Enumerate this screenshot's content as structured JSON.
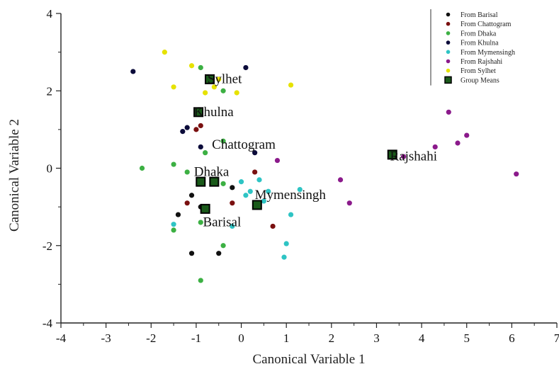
{
  "chart_data": {
    "type": "scatter",
    "xlabel": "Canonical Variable 1",
    "ylabel": "Canonical Variable 2",
    "xlim": [
      -4,
      7
    ],
    "ylim": [
      -4,
      4
    ],
    "xticks": [
      "-4",
      "-3",
      "-2",
      "-1",
      "0",
      "1",
      "2",
      "3",
      "4",
      "5",
      "6",
      "7"
    ],
    "yticks": [
      "4",
      "2",
      "0",
      "-2",
      "-4"
    ],
    "grid": false,
    "legend_position": "top-right",
    "series": [
      {
        "name": "From Barisal",
        "color": "#111111",
        "points": [
          [
            -1.1,
            -0.7
          ],
          [
            -1.4,
            -1.2
          ],
          [
            -0.9,
            -1.0
          ],
          [
            -0.5,
            -2.2
          ],
          [
            -1.1,
            -2.2
          ],
          [
            0.3,
            -0.9
          ],
          [
            -0.2,
            -0.5
          ]
        ]
      },
      {
        "name": "From Chattogram",
        "color": "#7a1010",
        "points": [
          [
            -1.0,
            1.0
          ],
          [
            -0.9,
            1.1
          ],
          [
            0.3,
            -0.1
          ],
          [
            0.7,
            -1.5
          ],
          [
            -1.2,
            -0.9
          ],
          [
            -0.6,
            -0.3
          ],
          [
            -0.2,
            -0.9
          ]
        ]
      },
      {
        "name": "From Dhaka",
        "color": "#3cb043",
        "points": [
          [
            -0.9,
            2.6
          ],
          [
            -0.4,
            2.0
          ],
          [
            -2.2,
            0.0
          ],
          [
            -1.5,
            0.1
          ],
          [
            -1.2,
            -0.1
          ],
          [
            -0.8,
            0.4
          ],
          [
            -0.4,
            0.7
          ],
          [
            -1.5,
            -1.6
          ],
          [
            -0.9,
            -1.4
          ],
          [
            -0.4,
            -2.0
          ],
          [
            -0.9,
            -2.9
          ],
          [
            -0.4,
            -0.4
          ]
        ]
      },
      {
        "name": "From Khulna",
        "color": "#0b0b3a",
        "points": [
          [
            -2.4,
            2.5
          ],
          [
            0.1,
            2.6
          ],
          [
            -1.3,
            0.95
          ],
          [
            -1.2,
            1.05
          ],
          [
            -0.9,
            0.55
          ],
          [
            0.3,
            0.4
          ]
        ]
      },
      {
        "name": "From Mymensingh",
        "color": "#2ec4c4",
        "points": [
          [
            0.2,
            -0.6
          ],
          [
            0.4,
            -0.3
          ],
          [
            1.3,
            -0.55
          ],
          [
            1.1,
            -1.2
          ],
          [
            1.0,
            -1.95
          ],
          [
            0.95,
            -2.3
          ],
          [
            -0.2,
            -1.5
          ],
          [
            -1.5,
            -1.45
          ],
          [
            0.0,
            -0.35
          ],
          [
            0.1,
            -0.7
          ],
          [
            0.5,
            -0.85
          ],
          [
            0.6,
            -0.6
          ]
        ]
      },
      {
        "name": "From Rajshahi",
        "color": "#8b1a8b",
        "points": [
          [
            4.6,
            1.45
          ],
          [
            5.0,
            0.85
          ],
          [
            4.8,
            0.65
          ],
          [
            4.3,
            0.55
          ],
          [
            6.1,
            -0.15
          ],
          [
            2.4,
            -0.9
          ],
          [
            2.2,
            -0.3
          ],
          [
            0.8,
            0.2
          ],
          [
            3.6,
            0.3
          ]
        ]
      },
      {
        "name": "From Sylhet",
        "color": "#e6e200",
        "points": [
          [
            -1.7,
            3.0
          ],
          [
            -1.1,
            2.65
          ],
          [
            -1.5,
            2.1
          ],
          [
            -0.8,
            1.95
          ],
          [
            -0.5,
            2.3
          ],
          [
            -0.1,
            1.95
          ],
          [
            1.1,
            2.15
          ],
          [
            -0.6,
            2.1
          ]
        ]
      },
      {
        "name": "Group Means",
        "color": "#111111",
        "points": [
          [
            -0.7,
            2.3
          ],
          [
            -0.95,
            1.45
          ],
          [
            3.35,
            0.35
          ],
          [
            -0.9,
            -0.35
          ],
          [
            -0.6,
            -0.35
          ],
          [
            0.35,
            -0.95
          ],
          [
            -0.8,
            -1.05
          ]
        ]
      }
    ],
    "annotations": [
      {
        "text": "Sylhet",
        "x": -0.75,
        "y": 2.2
      },
      {
        "text": "Khulna",
        "x": -1.05,
        "y": 1.35
      },
      {
        "text": "Chattogram",
        "x": -0.65,
        "y": 0.5
      },
      {
        "text": "Rajshahi",
        "x": 3.3,
        "y": 0.2
      },
      {
        "text": "Dhaka",
        "x": -1.05,
        "y": -0.2
      },
      {
        "text": "Mymensingh",
        "x": 0.3,
        "y": -0.8
      },
      {
        "text": "Barisal",
        "x": -0.85,
        "y": -1.5
      }
    ]
  }
}
